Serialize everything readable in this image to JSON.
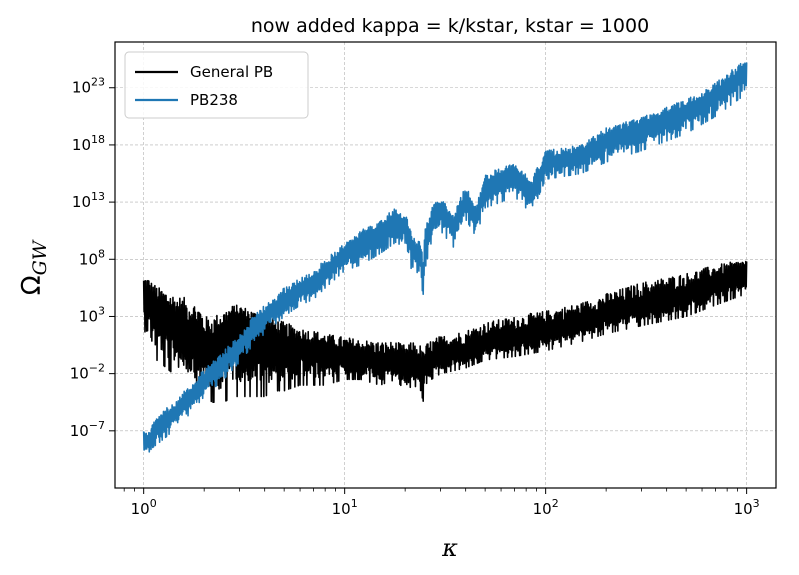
{
  "chart_data": {
    "type": "line",
    "title": "now added kappa = k/kstar, kstar = 1000",
    "xlabel_symbol": "κ",
    "ylabel_main": "Ω",
    "ylabel_sub": "GW",
    "x_scale": "log",
    "y_scale": "log",
    "xlim": [
      0.72,
      1400
    ],
    "ylim_exp": [
      -12,
      27
    ],
    "grid": true,
    "legend_position": "top-left",
    "x_tick_exponents": [
      0,
      1,
      2,
      3
    ],
    "y_tick_exponents": [
      -7,
      -2,
      3,
      8,
      13,
      18,
      23
    ],
    "tick_base": "10",
    "series": [
      {
        "name": "General PB",
        "color": "#000000",
        "x": [
          1.0,
          1.05,
          1.1,
          1.2,
          1.3,
          1.4,
          1.5,
          1.7,
          1.9,
          2.0,
          2.2,
          2.5,
          2.8,
          3.0,
          3.5,
          4.0,
          4.5,
          5.0,
          6.0,
          7.0,
          8.0,
          10.0,
          12.0,
          15.0,
          18.0,
          20.0,
          22.0,
          24.0,
          24.5,
          25.0,
          27.0,
          30.0,
          40.0,
          50.0,
          70.0,
          100.0,
          150.0,
          200.0,
          300.0,
          500.0,
          700.0,
          1000.0
        ],
        "y_exp": [
          5.0,
          4.5,
          4.0,
          3.5,
          3.0,
          2.5,
          2.0,
          1.5,
          1.0,
          0.5,
          0.5,
          1.5,
          2.5,
          2.5,
          2.0,
          1.5,
          1.0,
          0.5,
          0.5,
          0.0,
          0.0,
          -0.5,
          -0.5,
          -1.0,
          -1.0,
          -1.5,
          -1.0,
          -2.0,
          -3.5,
          -1.5,
          -1.0,
          -0.5,
          0.0,
          0.8,
          1.2,
          1.8,
          2.5,
          3.2,
          4.0,
          5.0,
          6.0,
          6.8
        ],
        "y_exp_low": [
          1.0,
          0.5,
          -0.5,
          -1.0,
          -1.5,
          -2.0,
          -2.5,
          -3.0,
          -3.5,
          -4.0,
          -4.5,
          -4.5,
          -4.0,
          -4.0,
          -4.0,
          -4.0,
          -3.5,
          -3.5,
          -3.0,
          -3.0,
          -3.0,
          -2.5,
          -2.5,
          -3.0,
          -2.5,
          -3.5,
          -3.0,
          -3.5,
          -5.5,
          -3.0,
          -2.5,
          -2.0,
          -1.5,
          -0.8,
          -0.5,
          0.0,
          0.8,
          1.5,
          2.2,
          3.0,
          4.0,
          5.0
        ],
        "y_exp_high": [
          6.5,
          6.5,
          6.0,
          5.5,
          5.3,
          5.0,
          4.8,
          4.5,
          4.0,
          3.0,
          3.0,
          3.5,
          4.0,
          4.0,
          3.5,
          3.0,
          2.8,
          2.5,
          2.0,
          1.8,
          1.5,
          1.2,
          1.0,
          0.8,
          0.8,
          0.5,
          0.8,
          0.5,
          0.0,
          0.5,
          1.0,
          1.3,
          1.8,
          2.5,
          3.0,
          3.5,
          4.2,
          5.0,
          6.0,
          6.8,
          7.5,
          8.0
        ]
      },
      {
        "name": "PB238",
        "color": "#1f77b4",
        "x": [
          1.0,
          1.05,
          1.1,
          1.2,
          1.3,
          1.5,
          1.7,
          2.0,
          2.5,
          3.0,
          3.5,
          4.0,
          5.0,
          6.0,
          7.0,
          8.0,
          10.0,
          12.0,
          15.0,
          18.0,
          20.0,
          22.0,
          24.0,
          24.5,
          25.0,
          27.0,
          30.0,
          35.0,
          40.0,
          45.0,
          50.0,
          60.0,
          70.0,
          85.0,
          100.0,
          150.0,
          200.0,
          300.0,
          500.0,
          700.0,
          1000.0
        ],
        "y_exp": [
          -8.0,
          -7.8,
          -7.5,
          -6.5,
          -6.0,
          -5.0,
          -4.0,
          -2.5,
          -1.0,
          0.5,
          2.0,
          3.0,
          4.5,
          5.5,
          6.0,
          7.0,
          8.5,
          9.5,
          10.5,
          11.5,
          11.0,
          9.0,
          8.5,
          5.0,
          9.5,
          11.5,
          12.5,
          11.0,
          13.5,
          11.5,
          14.5,
          15.0,
          15.5,
          14.0,
          16.5,
          17.0,
          18.5,
          19.5,
          21.0,
          22.5,
          24.5
        ],
        "y_exp_low": [
          -9.0,
          -9.0,
          -8.5,
          -8.0,
          -7.5,
          -6.5,
          -5.5,
          -4.0,
          -2.5,
          -1.0,
          0.5,
          1.5,
          3.0,
          4.0,
          4.5,
          5.5,
          7.0,
          7.5,
          8.5,
          9.5,
          9.0,
          6.5,
          6.0,
          4.5,
          7.0,
          9.5,
          10.5,
          9.0,
          11.5,
          10.0,
          12.5,
          13.0,
          13.5,
          12.0,
          15.0,
          15.5,
          16.5,
          17.5,
          19.0,
          20.5,
          22.5
        ],
        "y_exp_high": [
          -7.0,
          -6.8,
          -6.5,
          -5.5,
          -5.0,
          -4.0,
          -3.0,
          -1.5,
          0.0,
          1.5,
          3.0,
          4.0,
          5.5,
          6.5,
          7.0,
          8.0,
          9.5,
          10.5,
          11.5,
          12.5,
          12.0,
          10.0,
          9.5,
          8.0,
          10.5,
          12.5,
          13.5,
          12.0,
          14.5,
          12.5,
          15.5,
          16.0,
          16.5,
          15.0,
          17.5,
          18.0,
          19.5,
          20.5,
          22.0,
          23.5,
          25.5
        ]
      }
    ]
  }
}
